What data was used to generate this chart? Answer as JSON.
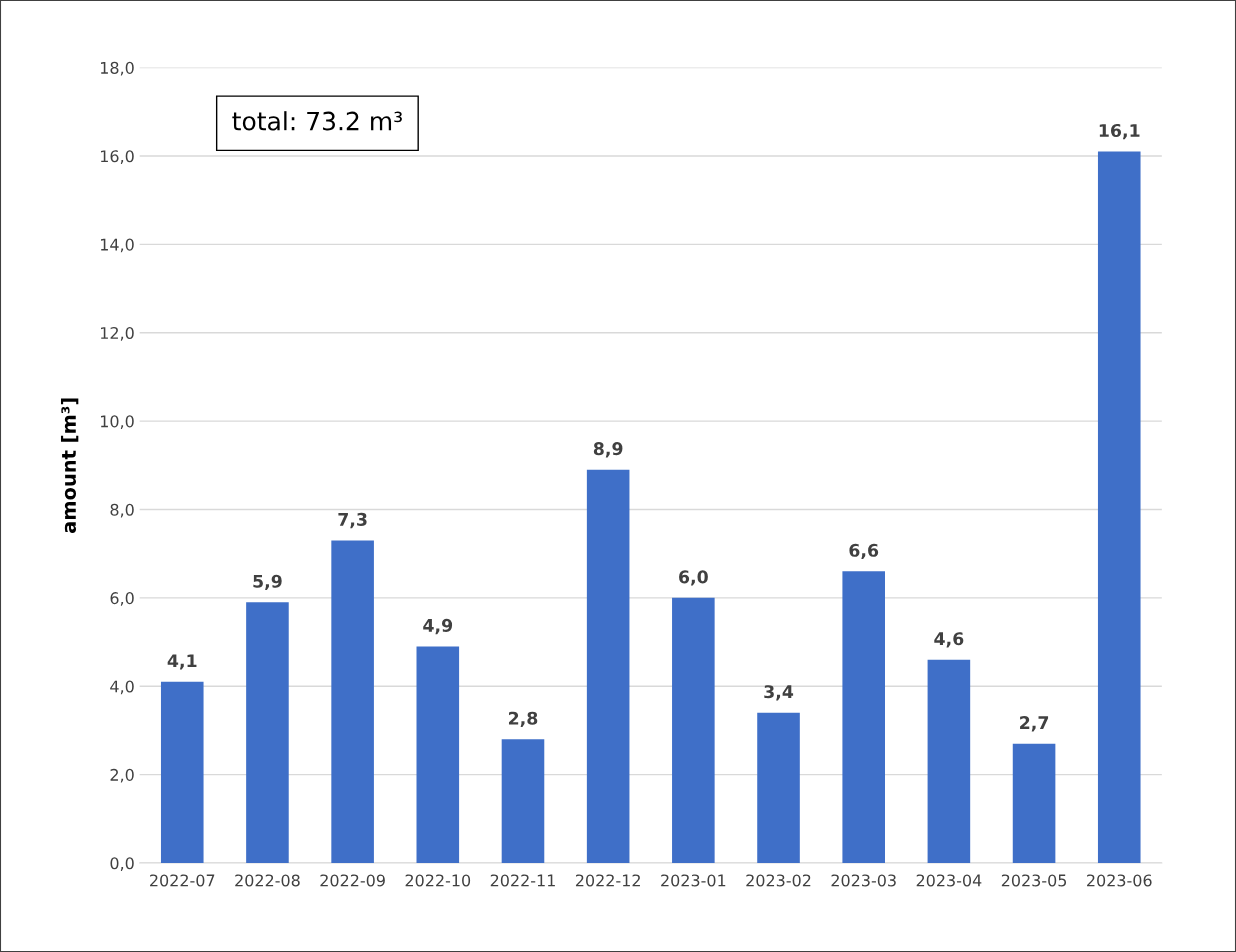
{
  "chart_data": {
    "type": "bar",
    "ylabel": "amount [m³]",
    "categories": [
      "2022-07",
      "2022-08",
      "2022-09",
      "2022-10",
      "2022-11",
      "2022-12",
      "2023-01",
      "2023-02",
      "2023-03",
      "2023-04",
      "2023-05",
      "2023-06"
    ],
    "values": [
      4.1,
      5.9,
      7.3,
      4.9,
      2.8,
      8.9,
      6.0,
      3.4,
      6.6,
      4.6,
      2.7,
      16.1
    ],
    "value_labels": [
      "4,1",
      "5,9",
      "7,3",
      "4,9",
      "2,8",
      "8,9",
      "6,0",
      "3,4",
      "6,6",
      "4,6",
      "2,7",
      "16,1"
    ],
    "color": "#3f6fc8",
    "ylim": [
      0,
      18
    ],
    "yticks": [
      {
        "value": 0,
        "label": "0,0"
      },
      {
        "value": 2,
        "label": "2,0"
      },
      {
        "value": 4,
        "label": "4,0"
      },
      {
        "value": 6,
        "label": "6,0"
      },
      {
        "value": 8,
        "label": "8,0"
      },
      {
        "value": 10,
        "label": "10,0"
      },
      {
        "value": 12,
        "label": "12,0"
      },
      {
        "value": 14,
        "label": "14,0"
      },
      {
        "value": 16,
        "label": "16,0"
      },
      {
        "value": 18,
        "label": "18,0"
      }
    ],
    "grid": "y",
    "annotations": [
      "total: 73.2 m³"
    ]
  }
}
